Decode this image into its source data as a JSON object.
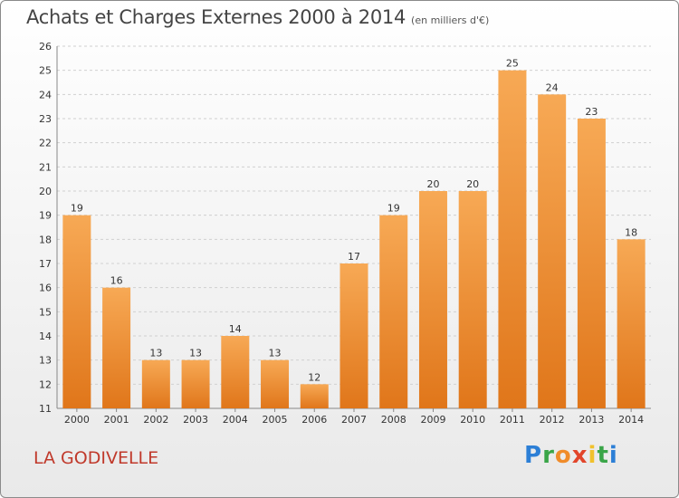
{
  "title": "Achats et Charges Externes 2000 à 2014",
  "unit": "(en milliers d'€)",
  "commune": "LA GODIVELLE",
  "logo": [
    "P",
    "r",
    "o",
    "x",
    "i",
    "t",
    "i"
  ],
  "colors": {
    "bar_top": "#f7a955",
    "bar_bottom": "#e0761a",
    "grid": "#d0d0d0",
    "title": "#444444",
    "commune": "#c0392b"
  },
  "chart_data": {
    "type": "bar",
    "title": "Achats et Charges Externes 2000 à 2014",
    "subtitle": "(en milliers d'€)",
    "categories": [
      "2000",
      "2001",
      "2002",
      "2003",
      "2004",
      "2005",
      "2006",
      "2007",
      "2008",
      "2009",
      "2010",
      "2011",
      "2012",
      "2013",
      "2014"
    ],
    "values": [
      19,
      16,
      13,
      13,
      14,
      13,
      12,
      17,
      19,
      20,
      20,
      25,
      24,
      23,
      18
    ],
    "ylim": [
      11,
      26
    ],
    "yticks": [
      11,
      12,
      13,
      14,
      15,
      16,
      17,
      18,
      19,
      20,
      21,
      22,
      23,
      24,
      25,
      26
    ],
    "grid": "dashed-horizontal",
    "xlabel": "",
    "ylabel": ""
  }
}
